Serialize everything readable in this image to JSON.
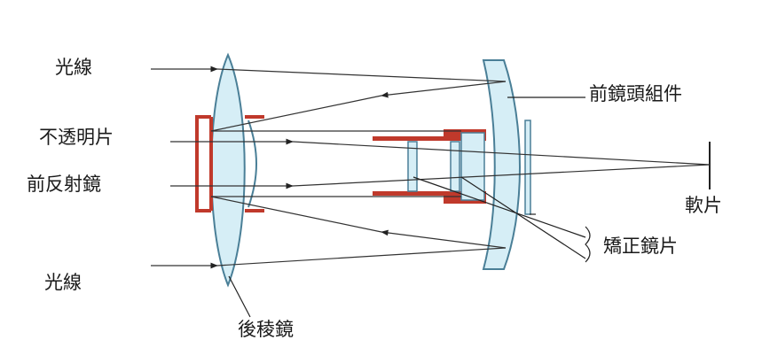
{
  "labels": {
    "light_top": "光線",
    "opaque_sheet": "不透明片",
    "front_reflector": "前反射鏡",
    "light_bottom": "光線",
    "rear_prism_mirror": "後稜鏡",
    "front_lens_group": "前鏡頭組件",
    "film": "軟片",
    "corrector_lens": "矯正鏡片"
  },
  "colors": {
    "lens_fill": "#d6eef6",
    "lens_stroke": "#4a7f97",
    "mount": "#c0392b",
    "ray": "#333333",
    "text": "#1a1a1a"
  }
}
